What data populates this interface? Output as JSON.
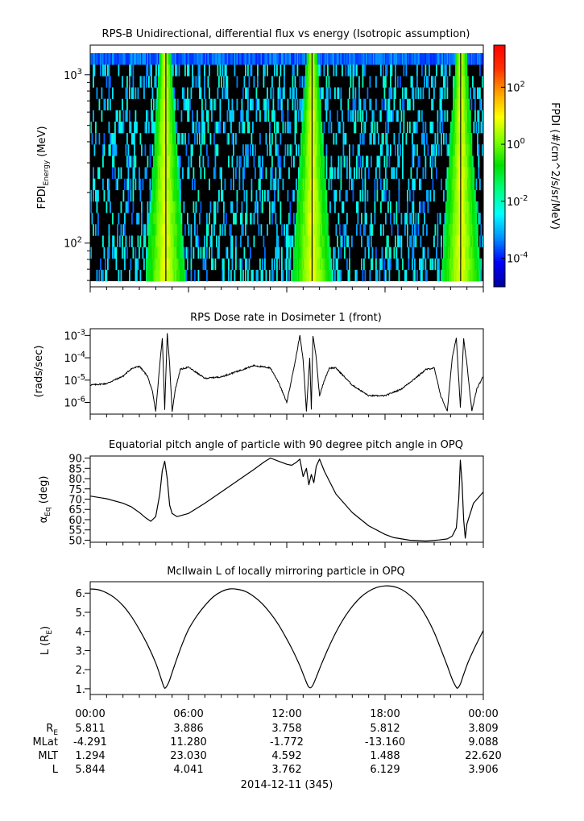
{
  "chart_data": [
    {
      "type": "heatmap",
      "title": "RPS-B  Unidirectional, differential flux vs energy (Isotropic assumption)",
      "ylabel_main": "FPDI",
      "ylabel_sub": "Energy",
      "ylabel_unit": " (MeV)",
      "yscale": "log",
      "ylim": [
        55,
        1500
      ],
      "yticks": [
        {
          "value": 100,
          "base": "10",
          "exp": "2"
        },
        {
          "value": 1000,
          "base": "10",
          "exp": "3"
        }
      ],
      "xlim_hours": [
        0,
        24
      ],
      "colorbar": {
        "label": "FPDI (#/cm^2/s/sr/MeV)",
        "scale": "log",
        "range": [
          1e-05,
          3000
        ],
        "ticks": [
          {
            "value": 0.0001,
            "base": "10",
            "exp": "-4"
          },
          {
            "value": 0.01,
            "base": "10",
            "exp": "-2"
          },
          {
            "value": 1,
            "base": "10",
            "exp": "0"
          },
          {
            "value": 100,
            "base": "10",
            "exp": "2"
          }
        ],
        "colors": [
          "#0000a0",
          "#0000ff",
          "#0090ff",
          "#00ffff",
          "#00ff80",
          "#00e000",
          "#80ff00",
          "#ffff00",
          "#ffa000",
          "#ff3000",
          "#ff0000"
        ]
      },
      "flux_peaks_hours": [
        4.55,
        13.5,
        22.6
      ]
    },
    {
      "type": "line",
      "title": "RPS  Dose rate in Dosimeter 1 (front)",
      "ylabel": "(rads/sec)",
      "yscale": "log",
      "ylim": [
        3e-07,
        0.002
      ],
      "yticks": [
        {
          "value": 1e-06,
          "base": "10",
          "exp": "-6"
        },
        {
          "value": 1e-05,
          "base": "10",
          "exp": "-5"
        },
        {
          "value": 0.0001,
          "base": "10",
          "exp": "-4"
        },
        {
          "value": 0.001,
          "base": "10",
          "exp": "-3"
        }
      ],
      "xlim_hours": [
        0,
        24
      ],
      "x": [
        0,
        1,
        2,
        2.5,
        3,
        3.5,
        3.8,
        4.0,
        4.2,
        4.4,
        4.55,
        4.7,
        4.85,
        5.0,
        5.2,
        5.5,
        6.0,
        7,
        8,
        9,
        10,
        11,
        11.5,
        12,
        12.5,
        12.8,
        13.0,
        13.2,
        13.4,
        13.5,
        13.6,
        13.8,
        14.0,
        14.3,
        14.6,
        15.0,
        16,
        17,
        18,
        19,
        20,
        20.5,
        21.0,
        21.4,
        21.8,
        22.1,
        22.35,
        22.6,
        22.8,
        23.0,
        23.3,
        23.6,
        24
      ],
      "values": [
        6e-06,
        7e-06,
        1.5e-05,
        3.2e-05,
        4.2e-05,
        1.5e-05,
        3e-06,
        4e-07,
        2e-05,
        0.0008,
        5e-07,
        0.0012,
        5e-05,
        4e-07,
        4e-06,
        3e-05,
        3.8e-05,
        1.2e-05,
        1.4e-05,
        2.5e-05,
        4.5e-05,
        3.5e-05,
        8e-06,
        1e-06,
        6e-05,
        0.001,
        8e-05,
        4e-07,
        0.0001,
        5e-07,
        0.001,
        0.0001,
        2e-06,
        1e-05,
        3.5e-05,
        3.5e-05,
        6e-06,
        2e-06,
        2e-06,
        4e-06,
        1.5e-05,
        3e-05,
        3.5e-05,
        2e-06,
        4e-07,
        0.0001,
        0.0008,
        6e-07,
        0.0007,
        5e-05,
        4e-07,
        4e-06,
        1.5e-05
      ]
    },
    {
      "type": "line",
      "title": "Equatorial pitch angle of particle with 90 degree pitch angle in OPQ",
      "ylabel_main": "α",
      "ylabel_sub": "Eq",
      "ylabel_unit": " (deg)",
      "ylim": [
        49,
        91
      ],
      "yticks": [
        "50.",
        "55.",
        "60.",
        "65.",
        "70.",
        "75.",
        "80.",
        "85.",
        "90."
      ],
      "xlim_hours": [
        0,
        24
      ],
      "x": [
        0,
        1,
        2,
        2.5,
        3.0,
        3.4,
        3.7,
        4.0,
        4.25,
        4.4,
        4.55,
        4.7,
        4.85,
        5.0,
        5.3,
        6.0,
        7,
        8,
        9,
        10,
        10.6,
        11.0,
        11.5,
        12.0,
        12.3,
        12.6,
        12.8,
        13.0,
        13.2,
        13.35,
        13.5,
        13.65,
        13.8,
        14.0,
        14.3,
        15.0,
        16,
        17,
        18,
        18.5,
        19.5,
        20.5,
        21.3,
        21.8,
        22.1,
        22.35,
        22.5,
        22.6,
        22.7,
        22.8,
        22.9,
        23.0,
        23.4,
        24
      ],
      "values": [
        71.5,
        70.2,
        68.0,
        66.3,
        63.5,
        60.8,
        59.2,
        61.5,
        72.5,
        84.0,
        88.5,
        80.0,
        67.0,
        63.0,
        61.5,
        63.0,
        68.0,
        73.5,
        79.0,
        84.5,
        88.0,
        90.0,
        88.5,
        87.0,
        86.5,
        88.0,
        89.5,
        81.0,
        85.0,
        77.0,
        82.0,
        78.0,
        86.0,
        89.5,
        83.5,
        72.5,
        63.5,
        57.0,
        52.8,
        51.3,
        50.0,
        49.6,
        50.1,
        50.6,
        52.0,
        56.0,
        70.0,
        89.0,
        78.0,
        60.0,
        51.0,
        58.0,
        68.0,
        73.5
      ]
    },
    {
      "type": "line",
      "title": "McIlwain L of locally mirroring particle in OPQ",
      "ylabel_main": "L (R",
      "ylabel_sub": "E",
      "ylabel_unit": ")",
      "ylim": [
        0.7,
        6.6
      ],
      "yticks": [
        "1.",
        "2.",
        "3.",
        "4.",
        "5.",
        "6."
      ],
      "xlim_hours": [
        0,
        24
      ],
      "x": [
        0,
        0.5,
        1,
        1.5,
        2,
        2.5,
        3,
        3.5,
        4.0,
        4.3,
        4.5,
        4.6,
        4.8,
        5.0,
        5.3,
        5.6,
        6.0,
        6.5,
        7.0,
        7.5,
        8.0,
        8.5,
        9.0,
        9.5,
        10.0,
        10.5,
        11.0,
        11.5,
        12.0,
        12.4,
        12.8,
        13.1,
        13.3,
        13.45,
        13.6,
        13.8,
        14.1,
        14.5,
        15.0,
        15.5,
        16.0,
        16.5,
        17.0,
        17.5,
        18.0,
        18.5,
        19.0,
        19.5,
        20.0,
        20.5,
        21.0,
        21.4,
        21.8,
        22.1,
        22.35,
        22.45,
        22.6,
        22.8,
        23.1,
        23.5,
        24.0
      ],
      "values": [
        6.22,
        6.18,
        6.02,
        5.75,
        5.35,
        4.8,
        4.1,
        3.3,
        2.35,
        1.6,
        1.1,
        1.05,
        1.35,
        1.85,
        2.6,
        3.3,
        4.1,
        4.8,
        5.35,
        5.8,
        6.08,
        6.22,
        6.2,
        6.08,
        5.82,
        5.45,
        4.95,
        4.35,
        3.6,
        2.95,
        2.2,
        1.55,
        1.15,
        1.05,
        1.2,
        1.6,
        2.25,
        3.05,
        3.95,
        4.7,
        5.3,
        5.78,
        6.1,
        6.3,
        6.38,
        6.35,
        6.2,
        5.9,
        5.45,
        4.8,
        3.95,
        3.1,
        2.2,
        1.5,
        1.08,
        1.05,
        1.25,
        1.75,
        2.45,
        3.2,
        4.05
      ]
    }
  ],
  "xaxis": {
    "ticks": [
      "00:00",
      "06:00",
      "12:00",
      "18:00",
      "00:00"
    ],
    "rows": [
      {
        "label_main": "R",
        "label_sub": "E",
        "values": [
          "5.811",
          "3.886",
          "3.758",
          "5.812",
          "3.809"
        ]
      },
      {
        "label_main": "MLat",
        "label_sub": "",
        "values": [
          "-4.291",
          "11.280",
          "-1.772",
          "-13.160",
          "9.088"
        ]
      },
      {
        "label_main": "MLT",
        "label_sub": "",
        "values": [
          "1.294",
          "23.030",
          "4.592",
          "1.488",
          "22.620"
        ]
      },
      {
        "label_main": "L",
        "label_sub": "",
        "values": [
          "5.844",
          "4.041",
          "3.762",
          "6.129",
          "3.906"
        ]
      }
    ],
    "date_label": "2014-12-11 (345)"
  }
}
